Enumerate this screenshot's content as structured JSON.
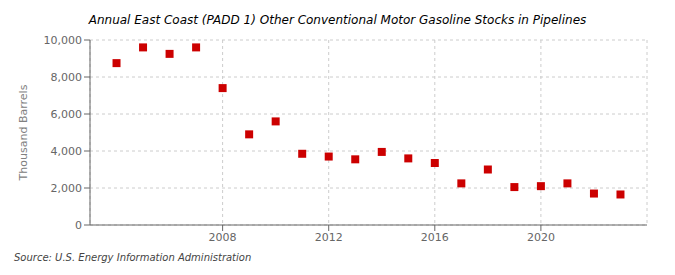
{
  "chart_data": {
    "type": "scatter",
    "title": "Annual East Coast (PADD 1) Other Conventional Motor Gasoline Stocks in Pipelines",
    "ylabel": "Thousand Barrels",
    "annotations": [
      "Source: U.S. Energy Information Administration"
    ],
    "x": [
      2004,
      2005,
      2006,
      2007,
      2008,
      2009,
      2010,
      2011,
      2012,
      2013,
      2014,
      2015,
      2016,
      2017,
      2018,
      2019,
      2020,
      2021,
      2022,
      2023
    ],
    "values": [
      8750,
      9600,
      9250,
      9600,
      7400,
      4900,
      5600,
      3850,
      3700,
      3550,
      3950,
      3600,
      3350,
      2250,
      3000,
      2050,
      2100,
      2250,
      1700,
      1650
    ],
    "color": "#cc0000",
    "marker": "square",
    "xlim": [
      2003.0,
      2024.0
    ],
    "xticks": [
      2008,
      2012,
      2016,
      2020
    ],
    "ylim": [
      0,
      10000
    ],
    "yticks": [
      0,
      {
        "value": 2000,
        "label": "2,000"
      },
      {
        "value": 4000,
        "label": "4,000"
      },
      {
        "value": 6000,
        "label": "6,000"
      },
      {
        "value": 8000,
        "label": "8,000"
      },
      {
        "value": 10000,
        "label": "10,000"
      }
    ],
    "grid": true
  }
}
